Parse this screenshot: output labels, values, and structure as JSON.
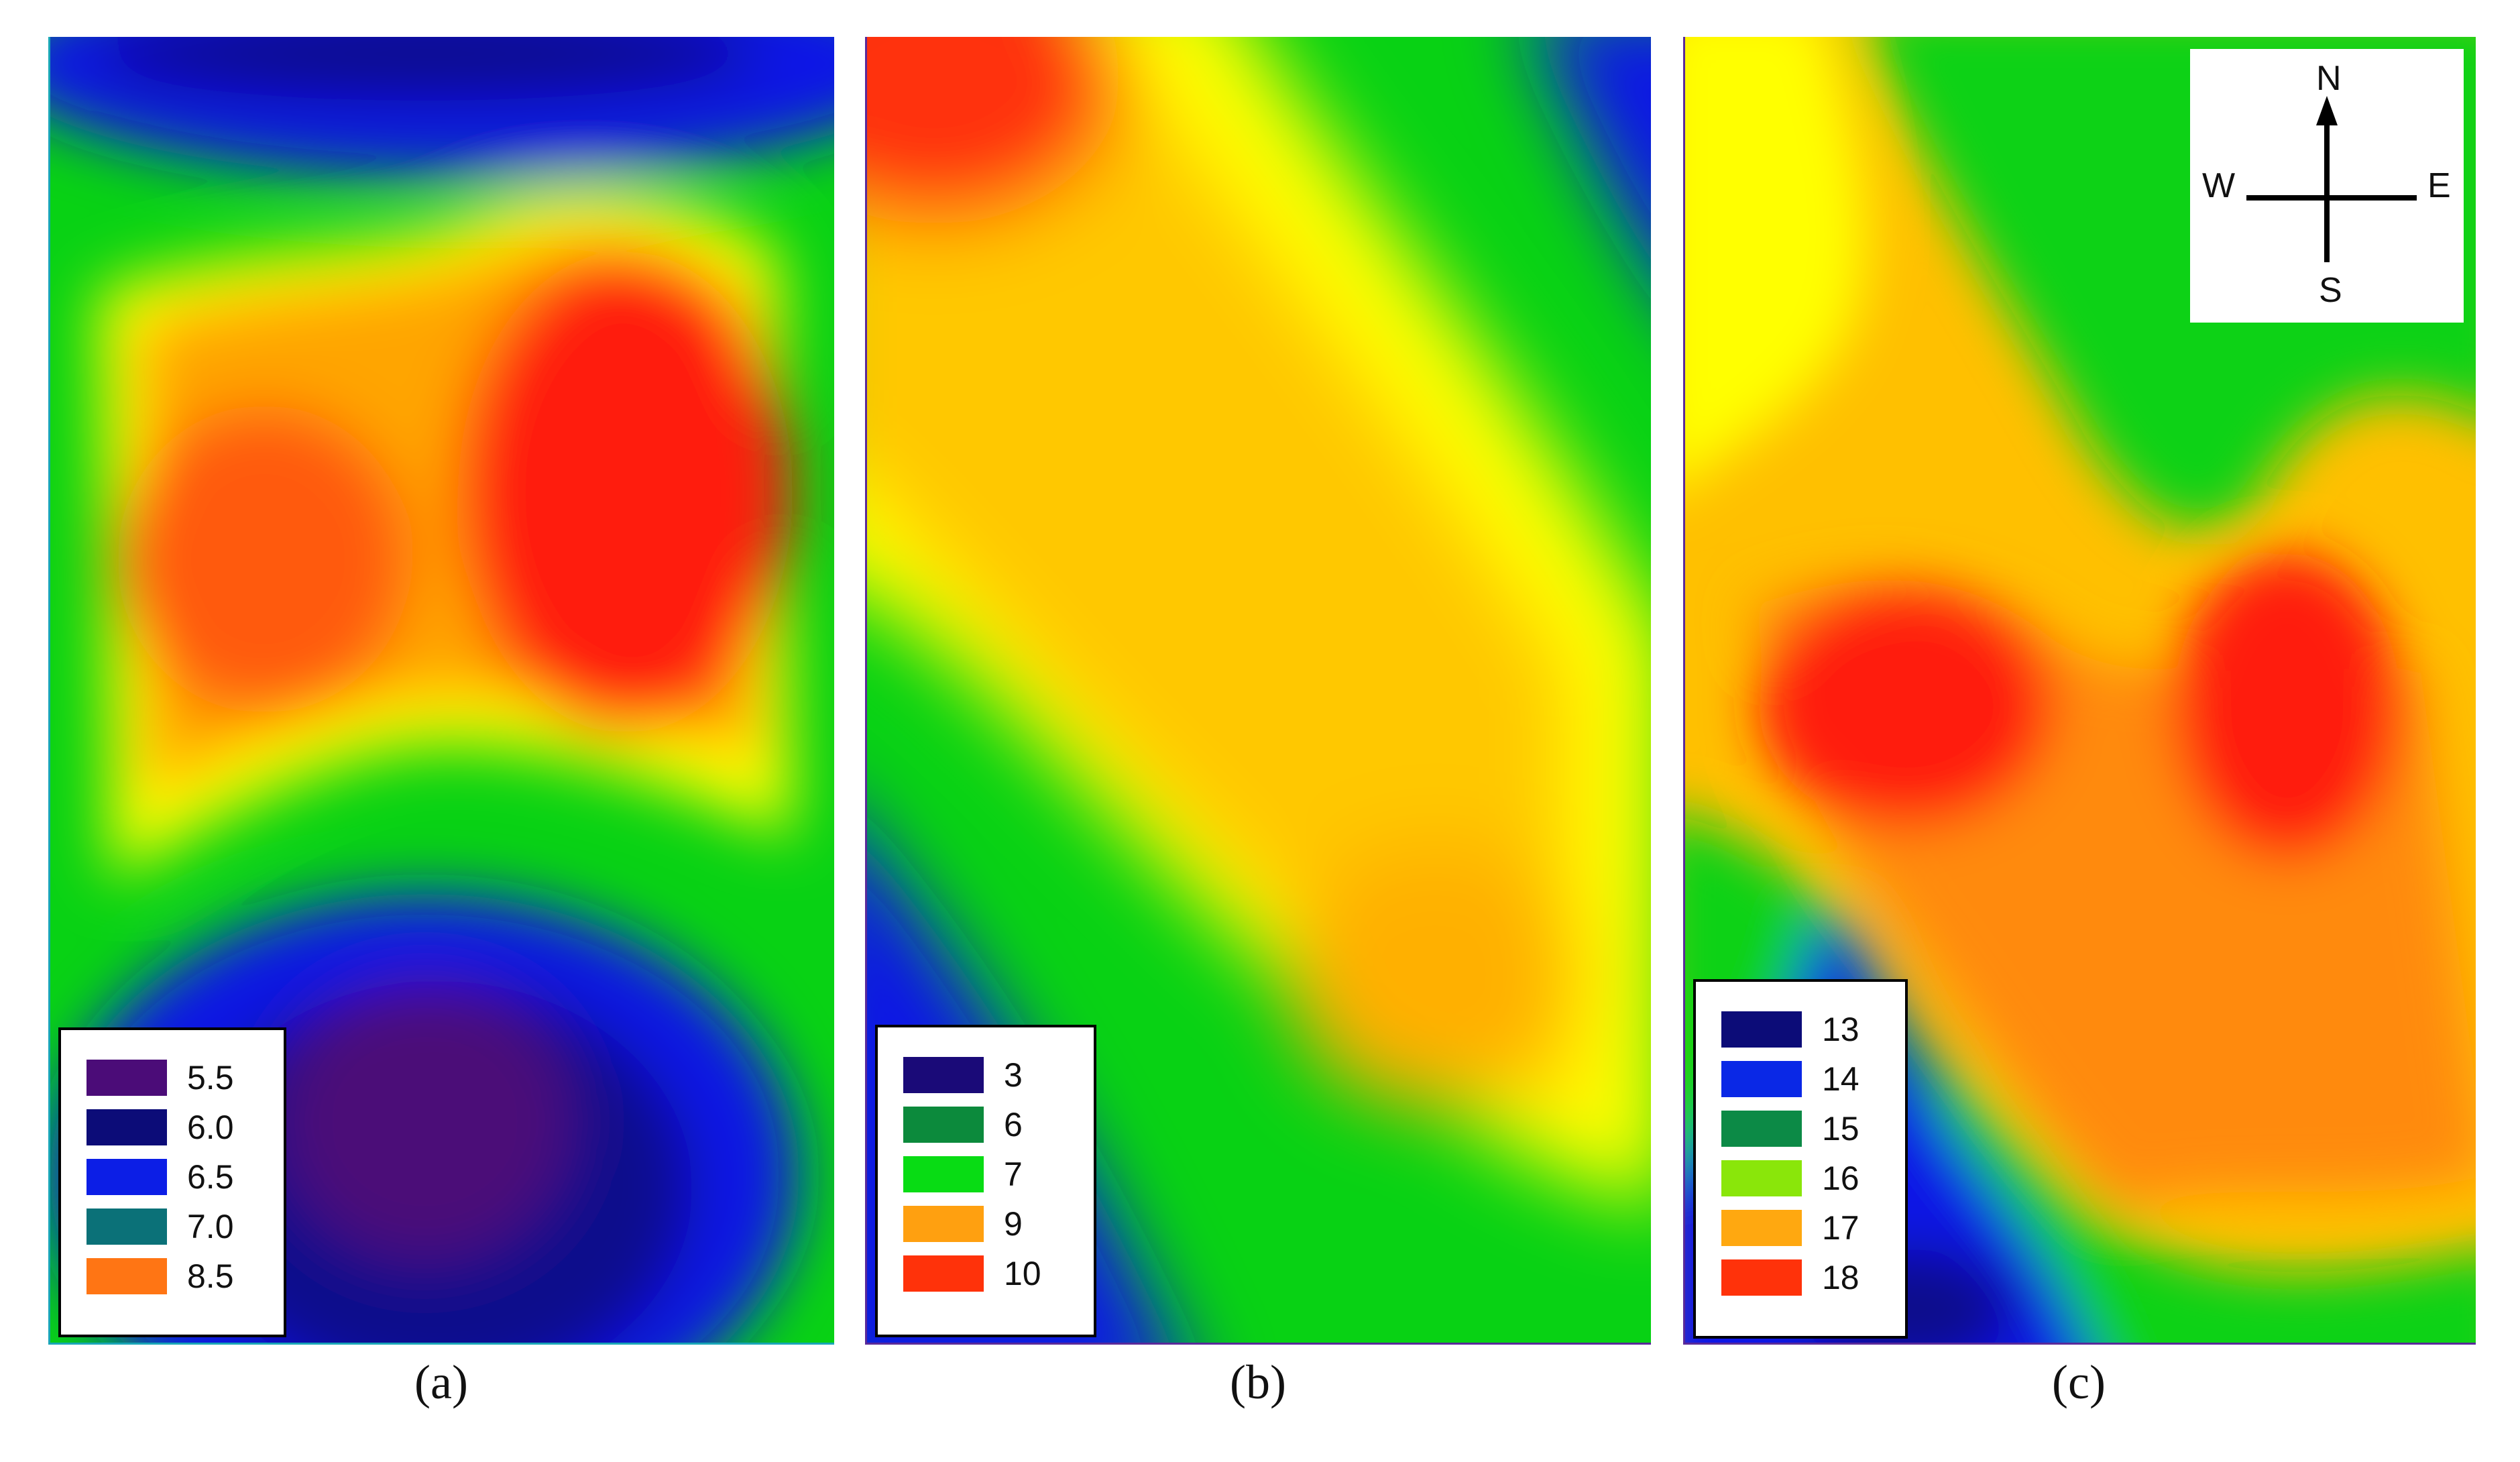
{
  "panels": [
    {
      "caption": "(a)",
      "legend": [
        {
          "label": "5.5",
          "color": "#4b0c78"
        },
        {
          "label": "6.0",
          "color": "#0c0c78"
        },
        {
          "label": "6.5",
          "color": "#0c1ee6"
        },
        {
          "label": "7.0",
          "color": "#0b7178"
        },
        {
          "label": "8.5",
          "color": "#ff7514"
        }
      ]
    },
    {
      "caption": "(b)",
      "legend": [
        {
          "label": "3",
          "color": "#1a0a78"
        },
        {
          "label": "6",
          "color": "#0c8a3c"
        },
        {
          "label": "7",
          "color": "#08dc14"
        },
        {
          "label": "9",
          "color": "#ffa010"
        },
        {
          "label": "10",
          "color": "#ff320a"
        }
      ]
    },
    {
      "caption": "(c)",
      "legend": [
        {
          "label": "13",
          "color": "#0c0c78"
        },
        {
          "label": "14",
          "color": "#0a28e6"
        },
        {
          "label": "15",
          "color": "#0c8a46"
        },
        {
          "label": "16",
          "color": "#8ae60a"
        },
        {
          "label": "17",
          "color": "#ffa810"
        },
        {
          "label": "18",
          "color": "#ff320a"
        }
      ]
    }
  ],
  "compass": {
    "n": "N",
    "s": "S",
    "w": "W",
    "e": "E"
  }
}
